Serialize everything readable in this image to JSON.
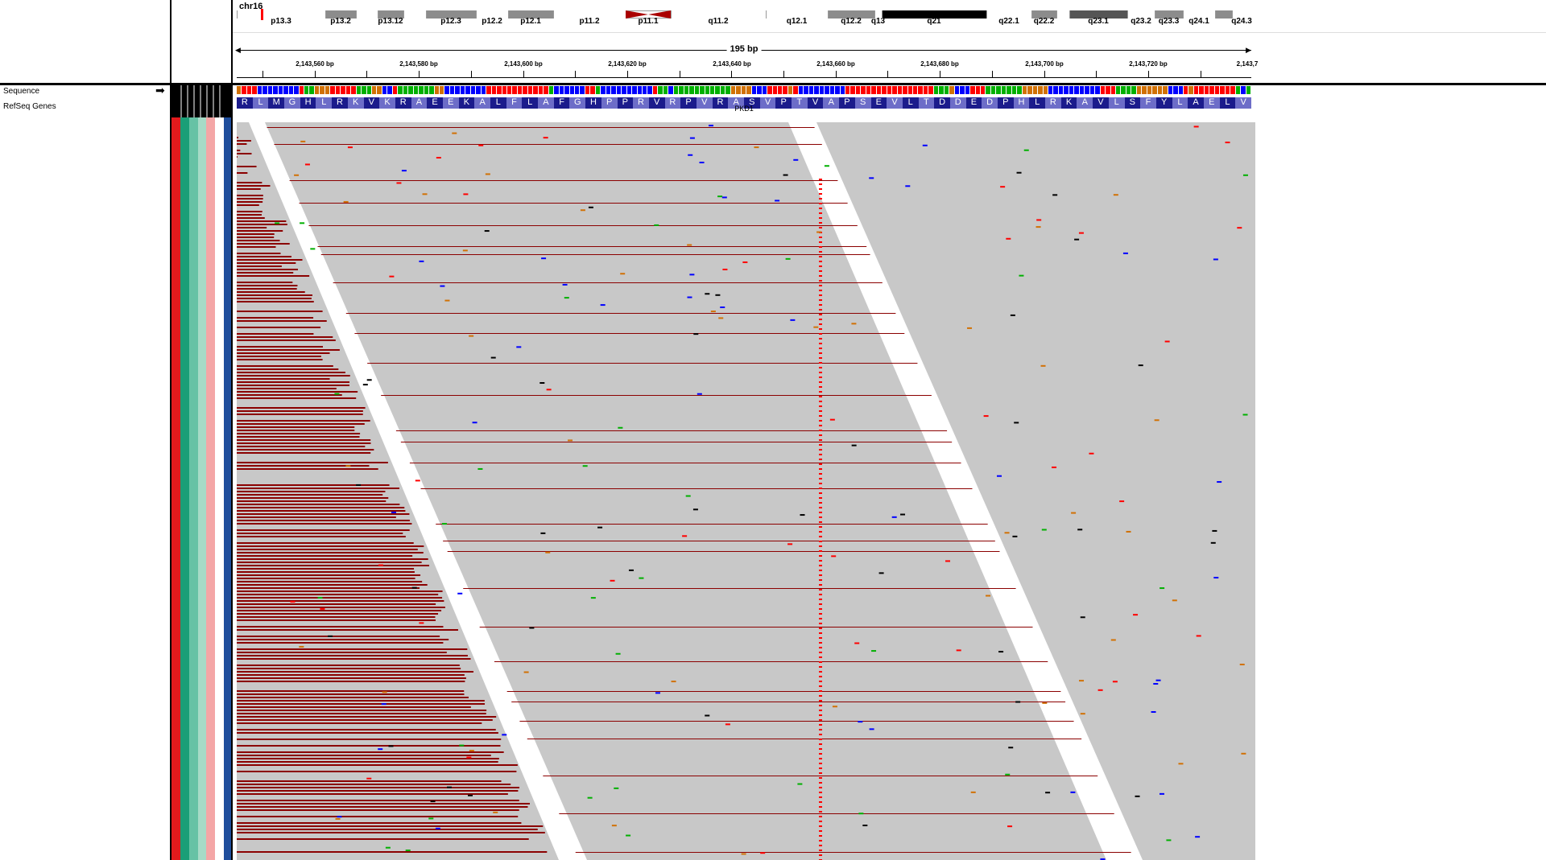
{
  "ideogram": {
    "chromosome": "chr16",
    "bands": [
      {
        "name": "p13.3",
        "stain": "white",
        "x0": 0,
        "x1": 110
      },
      {
        "name": "p13.2",
        "stain": "gray",
        "x0": 110,
        "x1": 148
      },
      {
        "name": "",
        "stain": "white",
        "x0": 148,
        "x1": 175
      },
      {
        "name": "p13.12",
        "stain": "gray",
        "x0": 175,
        "x1": 207
      },
      {
        "name": "",
        "stain": "white",
        "x0": 207,
        "x1": 235
      },
      {
        "name": "p12.3",
        "stain": "gray",
        "x0": 235,
        "x1": 297
      },
      {
        "name": "p12.2",
        "stain": "white",
        "x0": 297,
        "x1": 337
      },
      {
        "name": "p12.1",
        "stain": "gray",
        "x0": 337,
        "x1": 393
      },
      {
        "name": "p11.2",
        "stain": "white",
        "x0": 393,
        "x1": 483
      },
      {
        "name": "p11.1",
        "stain": "centromere",
        "x0": 483,
        "x1": 539
      },
      {
        "name": "q11.2",
        "stain": "white",
        "x0": 539,
        "x1": 657
      },
      {
        "name": "q12.1",
        "stain": "white",
        "x0": 657,
        "x1": 734
      },
      {
        "name": "q12.2",
        "stain": "gray",
        "x0": 734,
        "x1": 792
      },
      {
        "name": "q13",
        "stain": "white",
        "x0": 792,
        "x1": 801
      },
      {
        "name": "q21",
        "stain": "black",
        "x0": 801,
        "x1": 931
      },
      {
        "name": "q22.1",
        "stain": "white",
        "x0": 931,
        "x1": 987
      },
      {
        "name": "q22.2",
        "stain": "gray",
        "x0": 987,
        "x1": 1018
      },
      {
        "name": "",
        "stain": "white",
        "x0": 1018,
        "x1": 1034
      },
      {
        "name": "q23.1",
        "stain": "dark",
        "x0": 1034,
        "x1": 1106
      },
      {
        "name": "q23.2",
        "stain": "white",
        "x0": 1106,
        "x1": 1140
      },
      {
        "name": "q23.3",
        "stain": "gray",
        "x0": 1140,
        "x1": 1175
      },
      {
        "name": "q24.1",
        "stain": "white",
        "x0": 1175,
        "x1": 1215
      },
      {
        "name": "",
        "stain": "gray",
        "x0": 1215,
        "x1": 1236
      },
      {
        "name": "q24.3",
        "stain": "white",
        "x0": 1236,
        "x1": 1260
      }
    ],
    "current_region_x": 30
  },
  "ruler": {
    "span_label": "195 bp",
    "ticks": [
      {
        "label": "2,143,560 bp",
        "x": 97
      },
      {
        "label": "2,143,580 bp",
        "x": 226
      },
      {
        "label": "2,143,600 bp",
        "x": 356
      },
      {
        "label": "2,143,620 bp",
        "x": 485
      },
      {
        "label": "2,143,640 bp",
        "x": 615
      },
      {
        "label": "2,143,660 bp",
        "x": 744
      },
      {
        "label": "2,143,680 bp",
        "x": 873
      },
      {
        "label": "2,143,700 bp",
        "x": 1003
      },
      {
        "label": "2,143,720 bp",
        "x": 1132
      },
      {
        "label": "2,143,7",
        "x": 1255
      }
    ]
  },
  "tracks": {
    "sequence_label": "Sequence",
    "sequence_arrow": "➡",
    "refseq_label": "RefSeq Genes",
    "gene_name": "PKD1"
  },
  "amino_acids": [
    "R",
    "L",
    "M",
    "G",
    "H",
    "L",
    "R",
    "K",
    "V",
    "K",
    "R",
    "A",
    "E",
    "E",
    "K",
    "A",
    "L",
    "F",
    "L",
    "A",
    "F",
    "G",
    "H",
    "P",
    "P",
    "R",
    "V",
    "R",
    "P",
    "V",
    "R",
    "A",
    "S",
    "V",
    "P",
    "T",
    "V",
    "A",
    "P",
    "S",
    "E",
    "V",
    "L",
    "T",
    "D",
    "D",
    "E",
    "D",
    "P",
    "H",
    "L",
    "R",
    "K",
    "A",
    "V",
    "L",
    "S",
    "F",
    "Y",
    "L",
    "A",
    "E",
    "L",
    "V"
  ],
  "attribute_colors": [
    "#e31a1c",
    "#1b9e77",
    "#66c2a5",
    "#a6dbc7",
    "#f4a6a6",
    "#ffffff",
    "#1f4e9c"
  ],
  "colors": {
    "read": "#c8c8c8",
    "softclip": "#8b0000",
    "base_A": "#00b000",
    "base_C": "#0000ff",
    "base_G": "#d17105",
    "base_T": "#ff0000",
    "aa_dark": "#1b1b8c",
    "aa_light": "#6d6dc8",
    "mismatch_column": "#ff0000"
  }
}
